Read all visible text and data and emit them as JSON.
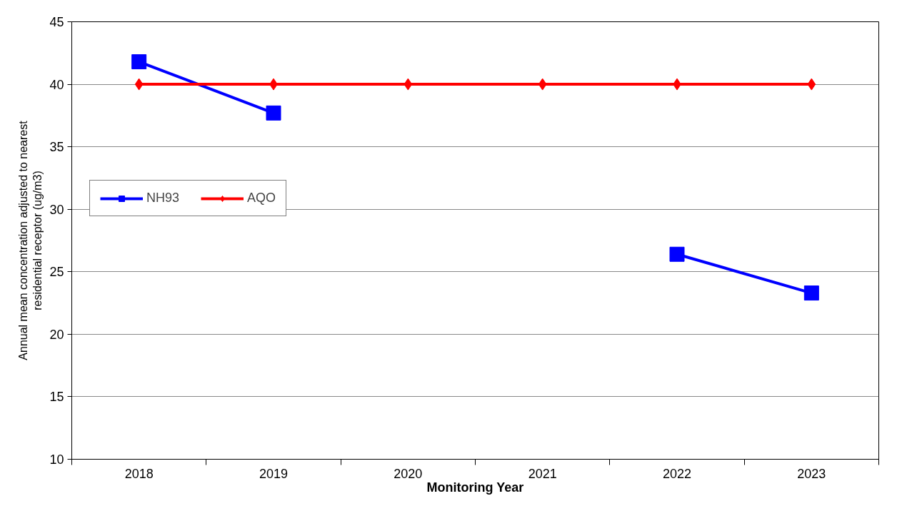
{
  "chart_data": {
    "type": "line",
    "xlabel": "Monitoring Year",
    "ylabel": "Annual mean concentration adjusted to nearest residential receptor (ug/m3)",
    "categories": [
      "2018",
      "2019",
      "2020",
      "2021",
      "2022",
      "2023"
    ],
    "series": [
      {
        "name": "NH93",
        "color": "#0000ff",
        "marker": "square",
        "values": [
          41.8,
          37.7,
          null,
          null,
          26.4,
          23.3
        ]
      },
      {
        "name": "AQO",
        "color": "#ff0000",
        "marker": "diamond",
        "values": [
          40,
          40,
          40,
          40,
          40,
          40
        ]
      }
    ],
    "ylim": [
      10,
      45
    ],
    "yticks": [
      10,
      15,
      20,
      25,
      30,
      35,
      40,
      45
    ],
    "grid": "y",
    "legend": "left",
    "line_style": "solid"
  }
}
